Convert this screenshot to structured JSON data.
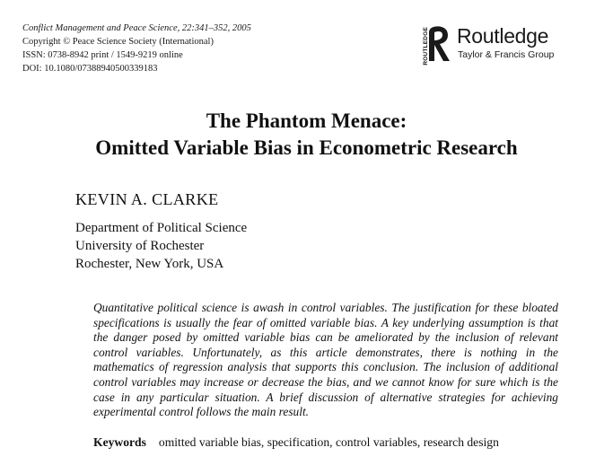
{
  "header": {
    "journal_line": "Conflict Management and Peace Science, 22:341–352, 2005",
    "copyright_line": "Copyright © Peace Science Society (International)",
    "issn_line": "ISSN: 0738-8942 print / 1549-9219 online",
    "doi_line": "DOI: 10.1080/07388940500339183"
  },
  "publisher": {
    "vertical_text": "ROUTLEDGE",
    "name": "Routledge",
    "group": "Taylor & Francis Group",
    "logo_icon": "routledge-r-logo-icon"
  },
  "article": {
    "title_line1": "The Phantom Menace:",
    "title_line2": "Omitted Variable Bias in Econometric Research",
    "author": "KEVIN A. CLARKE",
    "affiliation": [
      "Department of Political Science",
      "University of Rochester",
      "Rochester, New York, USA"
    ],
    "abstract": "Quantitative political science is awash in control variables. The justification for these bloated specifications is usually the fear of omitted variable bias. A key underlying assumption is that the danger posed by omitted variable bias can be ameliorated by the inclusion of relevant control variables. Unfortunately, as this article demonstrates, there is nothing in the mathematics of regression analysis that supports this conclusion. The inclusion of additional control variables may increase or decrease the bias, and we cannot know for sure which is the case in any particular situation. A brief discussion of alternative strategies for achieving experimental control follows the main result.",
    "keywords_label": "Keywords",
    "keywords": "omitted variable bias, specification, control variables, research design"
  }
}
